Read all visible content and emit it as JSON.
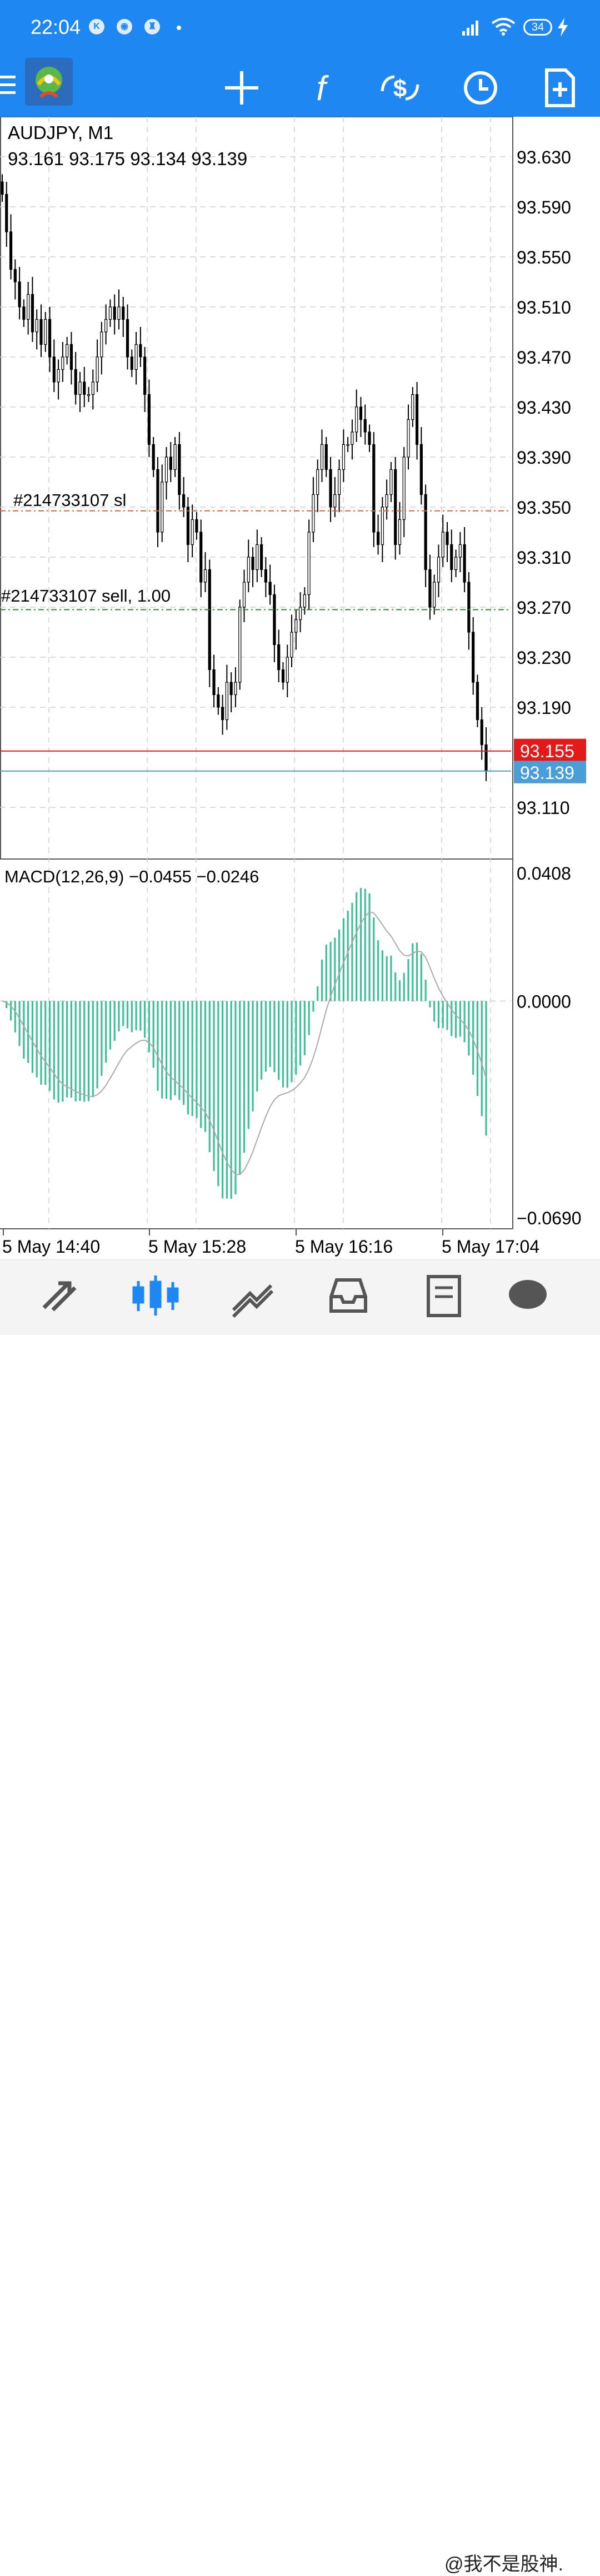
{
  "status_bar": {
    "time": "22:04",
    "notification_icons": [
      "K",
      "◉",
      "♜"
    ],
    "battery_level": "34",
    "icons": [
      "signal-icon",
      "wifi-icon",
      "battery-icon",
      "charging-icon"
    ]
  },
  "toolbar": {
    "menu_icon": "hamburger-icon",
    "app_icon": "metatrader-logo",
    "buttons": [
      "crosshair-icon",
      "indicators-icon",
      "trade-icon",
      "clock-icon",
      "new-order-icon"
    ]
  },
  "chart": {
    "symbol_label": "AUDJPY, M1",
    "ohlc_label": "93.161 93.175 93.134 93.139",
    "price_ticks": [
      "93.630",
      "93.590",
      "93.550",
      "93.510",
      "93.470",
      "93.430",
      "93.390",
      "93.350",
      "93.310",
      "93.270",
      "93.230",
      "93.190",
      "93.110"
    ],
    "sl_label": "#214733107 sl",
    "order_label": "#214733107 sell, 1.00",
    "ask_price": "93.155",
    "bid_price": "93.139",
    "macd_label": "MACD(12,26,9) −0.0455 −0.0246",
    "macd_ticks": [
      "0.0408",
      "0.0000",
      "−0.0690"
    ],
    "time_ticks": [
      "5 May 14:40",
      "5 May 15:28",
      "5 May 16:16",
      "5 May 17:04"
    ],
    "colors": {
      "ask_line": "#e31a1a",
      "bid_line": "#4a9ed8",
      "sl_line": "#d9662b",
      "order_line": "#2e8b3a",
      "macd_hist": "#3fbf99",
      "macd_signal": "#aaaaaa"
    }
  },
  "chart_data": {
    "type": "candlestick",
    "symbol": "AUDJPY",
    "timeframe": "M1",
    "price_range": [
      93.08,
      93.66
    ],
    "closes": [
      93.6,
      93.57,
      93.54,
      93.53,
      93.51,
      93.5,
      93.52,
      93.49,
      93.5,
      93.48,
      93.5,
      93.47,
      93.45,
      93.46,
      93.47,
      93.48,
      93.46,
      93.44,
      93.45,
      93.44,
      93.44,
      93.45,
      93.47,
      93.49,
      93.5,
      93.51,
      93.5,
      93.51,
      93.5,
      93.47,
      93.46,
      93.48,
      93.47,
      93.44,
      93.4,
      93.38,
      93.33,
      93.37,
      93.39,
      93.38,
      93.4,
      93.36,
      93.35,
      93.32,
      93.34,
      93.33,
      93.29,
      93.3,
      93.22,
      93.2,
      93.19,
      93.18,
      93.21,
      93.2,
      93.21,
      93.27,
      93.29,
      93.31,
      93.3,
      93.32,
      93.3,
      93.29,
      93.28,
      93.24,
      93.22,
      93.21,
      93.23,
      93.25,
      93.26,
      93.27,
      93.28,
      93.33,
      93.36,
      93.38,
      93.4,
      93.38,
      93.35,
      93.36,
      93.38,
      93.4,
      93.4,
      93.41,
      93.43,
      93.42,
      93.41,
      93.4,
      93.33,
      93.32,
      93.35,
      93.36,
      93.38,
      93.32,
      93.34,
      93.39,
      93.42,
      93.44,
      93.4,
      93.36,
      93.3,
      93.27,
      93.29,
      93.31,
      93.33,
      93.32,
      93.3,
      93.31,
      93.32,
      93.29,
      93.25,
      93.21,
      93.18,
      93.16,
      93.139
    ],
    "ask": 93.155,
    "bid": 93.139,
    "sl_level": 93.347,
    "order_level": 93.268,
    "macd": {
      "params": "12,26,9",
      "value": -0.0455,
      "signal": -0.0246,
      "range": [
        -0.069,
        0.0408
      ]
    }
  },
  "bottom_nav": {
    "items": [
      "quotes-icon",
      "chart-icon",
      "trade-icon",
      "history-icon",
      "messages-icon",
      "chat-icon"
    ],
    "watermark": "@我不是股神."
  }
}
